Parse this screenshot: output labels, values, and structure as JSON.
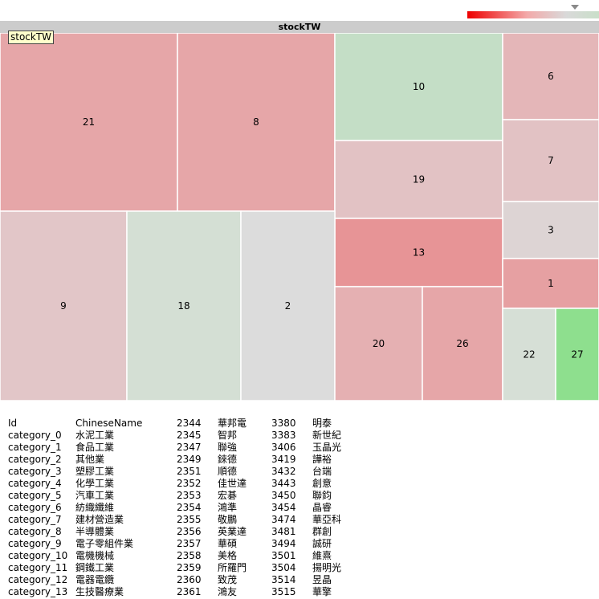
{
  "legend": {
    "gradient_colors": [
      "#ee0000",
      "#f3a8a8",
      "#d9d9d9",
      "#c9dfc9"
    ],
    "dropdown_icon": "triangle-down-icon"
  },
  "chart_data": {
    "type": "treemap",
    "title": "stockTW",
    "root_label": "stockTW",
    "nodes": [
      {
        "label": "21",
        "color": "#e6a6a8"
      },
      {
        "label": "8",
        "color": "#e6a6a8"
      },
      {
        "label": "10",
        "color": "#c4dec6"
      },
      {
        "label": "6",
        "color": "#e4b6b8"
      },
      {
        "label": "19",
        "color": "#e2c2c4"
      },
      {
        "label": "7",
        "color": "#e2c2c4"
      },
      {
        "label": "3",
        "color": "#ddd4d4"
      },
      {
        "label": "13",
        "color": "#e79496"
      },
      {
        "label": "1",
        "color": "#e6a0a2"
      },
      {
        "label": "9",
        "color": "#e2c6c8"
      },
      {
        "label": "18",
        "color": "#d4dfd4"
      },
      {
        "label": "2",
        "color": "#dcdcdc"
      },
      {
        "label": "20",
        "color": "#e5b0b2"
      },
      {
        "label": "26",
        "color": "#e6a6a8"
      },
      {
        "label": "22",
        "color": "#d6dfd6"
      },
      {
        "label": "27",
        "color": "#8edf8e"
      }
    ]
  },
  "info_table": {
    "rows": [
      [
        "Id",
        "ChineseName",
        "2344",
        "華邦電",
        "3380",
        "明泰"
      ],
      [
        "category_0",
        "水泥工業",
        "2345",
        "智邦",
        "3383",
        "新世紀"
      ],
      [
        "category_1",
        "食品工業",
        "2347",
        "聯強",
        "3406",
        "玉晶光"
      ],
      [
        "category_2",
        "其他業",
        "2349",
        "錸德",
        "3419",
        "譁裕"
      ],
      [
        "category_3",
        "塑膠工業",
        "2351",
        "順德",
        "3432",
        "台端"
      ],
      [
        "category_4",
        "化學工業",
        "2352",
        "佳世達",
        "3443",
        "創意"
      ],
      [
        "category_5",
        "汽車工業",
        "2353",
        "宏碁",
        "3450",
        "聯鈞"
      ],
      [
        "category_6",
        "紡織纖維",
        "2354",
        "鴻準",
        "3454",
        "晶睿"
      ],
      [
        "category_7",
        "建材營造業",
        "2355",
        "敬鵬",
        "3474",
        "華亞科"
      ],
      [
        "category_8",
        "半導體業",
        "2356",
        "英業達",
        "3481",
        "群創"
      ],
      [
        "category_9",
        "電子零組件業",
        "2357",
        "華碩",
        "3494",
        "誠研"
      ],
      [
        "category_10",
        "電機機械",
        "2358",
        "美格",
        "3501",
        "維熹"
      ],
      [
        "category_11",
        "鋼鐵工業",
        "2359",
        "所羅門",
        "3504",
        "揚明光"
      ],
      [
        "category_12",
        "電器電纜",
        "2360",
        "致茂",
        "3514",
        "昱晶"
      ],
      [
        "category_13",
        "生技醫療業",
        "2361",
        "鴻友",
        "3515",
        "華擎"
      ]
    ]
  }
}
